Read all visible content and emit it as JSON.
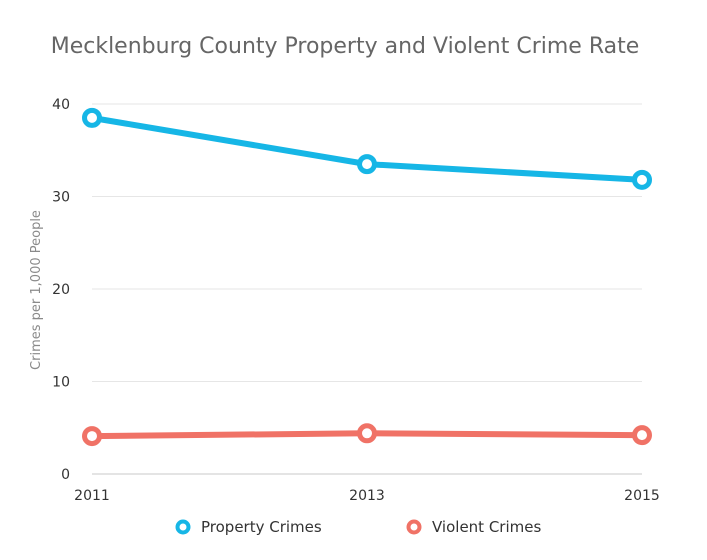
{
  "chart_data": {
    "type": "line",
    "title": "Mecklenburg County Property and Violent Crime Rate",
    "xlabel": "",
    "ylabel": "Crimes per 1,000 People",
    "x": [
      "2011",
      "2013",
      "2015"
    ],
    "ylim": [
      0,
      40
    ],
    "yticks": [
      "0",
      "10",
      "20",
      "30",
      "40"
    ],
    "grid": true,
    "legend_position": "bottom",
    "series": [
      {
        "name": "Property Crimes",
        "values": [
          38.5,
          33.5,
          31.8
        ],
        "color": "#16b6e6"
      },
      {
        "name": "Violent Crimes",
        "values": [
          4.1,
          4.4,
          4.2
        ],
        "color": "#f07266"
      }
    ]
  }
}
